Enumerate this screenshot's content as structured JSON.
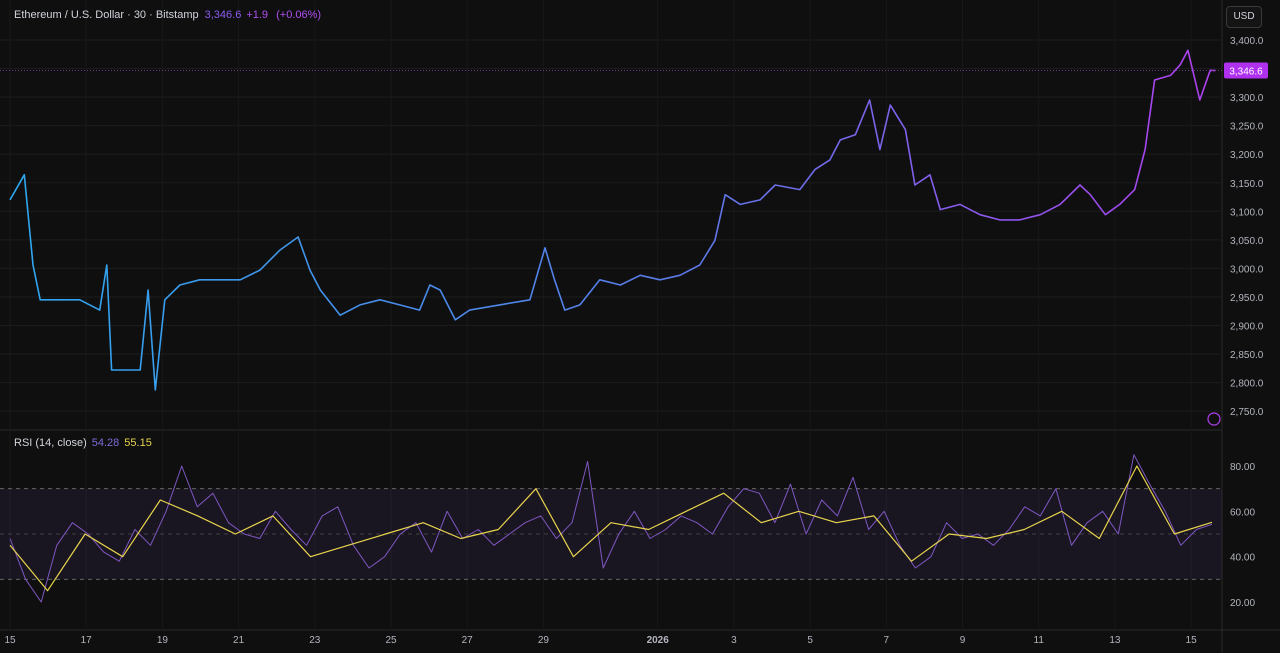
{
  "header": {
    "symbol": "Ethereum / U.S. Dollar · 30 · Bitstamp",
    "last": "3,346.6",
    "change": "+1.9",
    "change_pct": "(+0.06%)"
  },
  "currency_button": "USD",
  "price_label": "3,346.6",
  "rsi_legend": {
    "name": "RSI (14, close)",
    "rsi": "54.28",
    "ma": "55.15"
  },
  "colors": {
    "bg": "#0f0f0f",
    "line_start": "#2ea8f0",
    "line_end": "#b040f0",
    "rsi": "#7e57c2",
    "rsi_ma": "#e8d44d",
    "price_tag": "#b030f0"
  },
  "chart_data": [
    {
      "type": "line",
      "title": "Ethereum / U.S. Dollar · 30 · Bitstamp",
      "ylim": [
        2725,
        3425
      ],
      "y_ticks": [
        "3,400.0",
        "3,350.0",
        "3,300.0",
        "3,250.0",
        "3,200.0",
        "3,150.0",
        "3,100.0",
        "3,050.0",
        "3,000.0",
        "2,950.0",
        "2,900.0",
        "2,850.0",
        "2,800.0",
        "2,750.0"
      ],
      "x_ticks": [
        "15",
        "17",
        "19",
        "21",
        "23",
        "25",
        "27",
        "29",
        "2026",
        "3",
        "5",
        "7",
        "9",
        "11",
        "13",
        "15"
      ],
      "series": [
        {
          "points": [
            [
              "2025-12-15T00:00",
              3120
            ],
            [
              "2025-12-15T09:00",
              3164
            ],
            [
              "2025-12-15T14:30",
              3006
            ],
            [
              "2025-12-15T19:00",
              2945
            ],
            [
              "2025-12-16T07:30",
              2945
            ],
            [
              "2025-12-16T20:00",
              2945
            ],
            [
              "2025-12-17T08:30",
              2927
            ],
            [
              "2025-12-17T13:00",
              3006
            ],
            [
              "2025-12-17T16:00",
              2822
            ],
            [
              "2025-12-18T10:00",
              2822
            ],
            [
              "2025-12-18T15:00",
              2962
            ],
            [
              "2025-12-18T19:30",
              2787
            ],
            [
              "2025-12-19T01:30",
              2945
            ],
            [
              "2025-12-19T11:00",
              2971
            ],
            [
              "2025-12-19T23:30",
              2980
            ],
            [
              "2025-12-21T01:00",
              2980
            ],
            [
              "2025-12-21T13:30",
              2997
            ],
            [
              "2025-12-22T02:00",
              3032
            ],
            [
              "2025-12-22T13:30",
              3055
            ],
            [
              "2025-12-22T21:00",
              2997
            ],
            [
              "2025-12-23T03:30",
              2962
            ],
            [
              "2025-12-23T16:00",
              2918
            ],
            [
              "2025-12-24T04:30",
              2936
            ],
            [
              "2025-12-24T17:00",
              2945
            ],
            [
              "2025-12-25T05:30",
              2936
            ],
            [
              "2025-12-25T18:00",
              2927
            ],
            [
              "2025-12-26T00:30",
              2971
            ],
            [
              "2025-12-26T07:00",
              2962
            ],
            [
              "2025-12-26T16:30",
              2910
            ],
            [
              "2025-12-27T01:30",
              2927
            ],
            [
              "2025-12-27T20:30",
              2936
            ],
            [
              "2025-12-28T15:30",
              2945
            ],
            [
              "2025-12-29T01:00",
              3036
            ],
            [
              "2025-12-29T07:00",
              2980
            ],
            [
              "2025-12-29T13:30",
              2927
            ],
            [
              "2025-12-29T23:00",
              2936
            ],
            [
              "2025-12-30T11:30",
              2980
            ],
            [
              "2025-12-31T00:30",
              2971
            ],
            [
              "2025-12-31T13:00",
              2988
            ],
            [
              "2026-01-01T01:30",
              2980
            ],
            [
              "2026-01-01T14:00",
              2988
            ],
            [
              "2026-01-02T02:30",
              3006
            ],
            [
              "2026-01-02T12:00",
              3049
            ],
            [
              "2026-01-02T18:30",
              3129
            ],
            [
              "2026-01-03T04:00",
              3112
            ],
            [
              "2026-01-03T16:30",
              3120
            ],
            [
              "2026-01-04T02:00",
              3146
            ],
            [
              "2026-01-04T17:30",
              3138
            ],
            [
              "2026-01-05T03:00",
              3173
            ],
            [
              "2026-01-05T12:30",
              3190
            ],
            [
              "2026-01-05T19:00",
              3225
            ],
            [
              "2026-01-06T04:30",
              3234
            ],
            [
              "2026-01-06T13:30",
              3295
            ],
            [
              "2026-01-06T20:00",
              3208
            ],
            [
              "2026-01-07T02:30",
              3286
            ],
            [
              "2026-01-07T12:00",
              3243
            ],
            [
              "2026-01-07T18:00",
              3146
            ],
            [
              "2026-01-08T03:30",
              3164
            ],
            [
              "2026-01-08T10:00",
              3103
            ],
            [
              "2026-01-08T22:30",
              3112
            ],
            [
              "2026-01-09T11:00",
              3094
            ],
            [
              "2026-01-09T23:30",
              3085
            ],
            [
              "2026-01-10T12:00",
              3085
            ],
            [
              "2026-01-11T01:00",
              3094
            ],
            [
              "2026-01-11T13:30",
              3112
            ],
            [
              "2026-01-12T02:00",
              3146
            ],
            [
              "2026-01-12T08:30",
              3129
            ],
            [
              "2026-01-12T18:00",
              3094
            ],
            [
              "2026-01-13T03:00",
              3112
            ],
            [
              "2026-01-13T12:30",
              3138
            ],
            [
              "2026-01-13T19:00",
              3208
            ],
            [
              "2026-01-14T01:00",
              3330
            ],
            [
              "2026-01-14T11:00",
              3338
            ],
            [
              "2026-01-14T17:00",
              3356
            ],
            [
              "2026-01-14T22:00",
              3382
            ],
            [
              "2026-01-15T05:30",
              3295
            ],
            [
              "2026-01-15T12:00",
              3347
            ],
            [
              "2026-01-15T15:30",
              3346.6
            ]
          ]
        }
      ]
    },
    {
      "type": "line",
      "title": "RSI (14, close)",
      "ylim": [
        15,
        85
      ],
      "y_ticks": [
        "80.00",
        "60.00",
        "40.00",
        "20.00"
      ],
      "bands": [
        30,
        50,
        70
      ],
      "series": [
        {
          "name": "RSI",
          "values": [
            48,
            30,
            20,
            45,
            55,
            50,
            42,
            38,
            52,
            45,
            60,
            80,
            62,
            68,
            55,
            50,
            48,
            60,
            52,
            45,
            58,
            62,
            45,
            35,
            40,
            50,
            55,
            42,
            60,
            48,
            52,
            45,
            50,
            55,
            58,
            48,
            55,
            82,
            35,
            50,
            60,
            48,
            52,
            58,
            55,
            50,
            62,
            70,
            68,
            55,
            72,
            50,
            65,
            58,
            75,
            52,
            60,
            45,
            35,
            40,
            55,
            48,
            50,
            45,
            52,
            62,
            58,
            70,
            45,
            55,
            60,
            50,
            85,
            72,
            60,
            45,
            52,
            54.28
          ]
        },
        {
          "name": "RSI MA",
          "values": [
            45,
            25,
            50,
            40,
            65,
            58,
            50,
            58,
            40,
            45,
            50,
            55,
            48,
            52,
            70,
            40,
            55,
            52,
            60,
            68,
            55,
            60,
            55,
            58,
            38,
            50,
            48,
            52,
            60,
            48,
            80,
            50,
            55.15
          ]
        }
      ]
    }
  ]
}
